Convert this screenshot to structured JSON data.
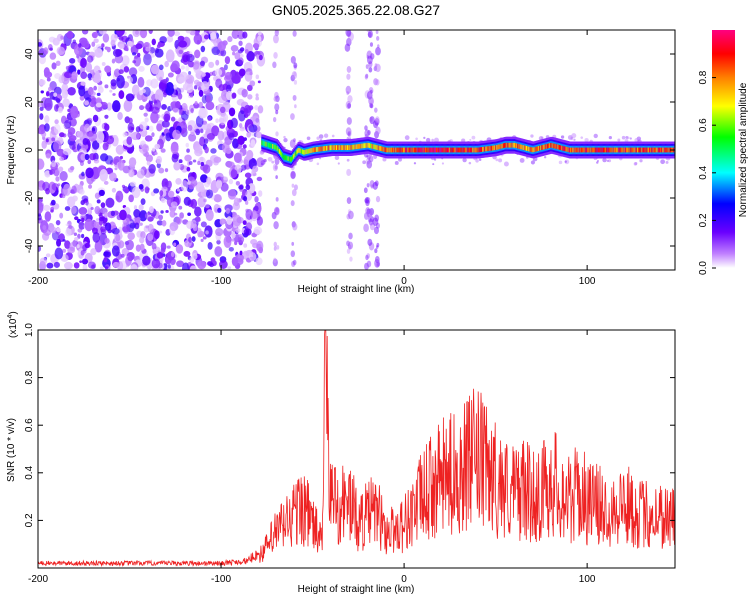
{
  "title": "GN05.2025.365.22.08.G27",
  "chart_data": [
    {
      "type": "heatmap",
      "xlabel": "Height of straight line (km)",
      "ylabel": "Frequency (Hz)",
      "xlim": [
        -200,
        148
      ],
      "ylim": [
        -50,
        50
      ],
      "xticks": [
        -200,
        -100,
        0,
        100
      ],
      "yticks": [
        -40,
        -20,
        0,
        20,
        40
      ],
      "colorbar": {
        "label": "Normalized spectral amplitude",
        "range": [
          0,
          1
        ],
        "ticks": [
          0.0,
          0.2,
          0.4,
          0.6,
          0.8
        ],
        "colors": [
          "#ffffff",
          "#c080ff",
          "#6a00ff",
          "#0000ff",
          "#00ffff",
          "#00ff00",
          "#ffff00",
          "#ff8000",
          "#ff0000",
          "#ff00a0"
        ]
      },
      "noise_region_x": [
        -200,
        -78
      ],
      "ridge": {
        "x": [
          -78,
          -74,
          -70,
          -66,
          -62,
          -58,
          -55,
          -50,
          -40,
          -30,
          -20,
          -10,
          0,
          10,
          20,
          30,
          40,
          50,
          55,
          60,
          65,
          70,
          75,
          80,
          90,
          100,
          110,
          120,
          130,
          140,
          148
        ],
        "freq": [
          3,
          2,
          1,
          -3,
          -4,
          0,
          -1,
          0,
          1,
          1,
          2,
          0,
          0,
          0,
          0,
          0,
          0,
          1,
          2,
          2,
          1,
          0,
          1,
          2,
          0,
          0,
          0,
          0,
          0,
          0,
          0
        ],
        "amp": [
          0.5,
          0.6,
          0.6,
          0.55,
          0.6,
          0.65,
          0.7,
          0.75,
          0.75,
          0.75,
          0.7,
          0.8,
          0.85,
          0.9,
          0.9,
          0.85,
          0.85,
          0.8,
          0.85,
          0.8,
          0.75,
          0.8,
          0.8,
          0.85,
          0.85,
          0.85,
          0.9,
          0.85,
          0.85,
          0.85,
          0.85
        ]
      }
    },
    {
      "type": "line",
      "xlabel": "Height of straight line (km)",
      "ylabel": "SNR (10 * v/v)",
      "y_multiplier": "(x10^4)",
      "xlim": [
        -200,
        148
      ],
      "ylim": [
        0,
        1.0
      ],
      "xticks": [
        -200,
        -100,
        0,
        100
      ],
      "yticks": [
        0.2,
        0.4,
        0.6,
        0.8,
        1.0
      ],
      "color": "#ee2222",
      "series": [
        {
          "x": [
            -200,
            -150,
            -100,
            -85,
            -78,
            -75,
            -70,
            -65,
            -60,
            -55,
            -50,
            -45,
            -43,
            -40,
            -35,
            -30,
            -25,
            -20,
            -15,
            -10,
            -5,
            0,
            5,
            10,
            15,
            20,
            25,
            30,
            35,
            40,
            45,
            50,
            55,
            60,
            65,
            70,
            75,
            80,
            85,
            90,
            95,
            100,
            110,
            120,
            130,
            140,
            148
          ],
          "y": [
            0.02,
            0.02,
            0.02,
            0.03,
            0.08,
            0.12,
            0.2,
            0.25,
            0.3,
            0.35,
            0.25,
            0.15,
            1.0,
            0.4,
            0.35,
            0.38,
            0.25,
            0.3,
            0.32,
            0.2,
            0.22,
            0.25,
            0.32,
            0.4,
            0.45,
            0.5,
            0.52,
            0.55,
            0.58,
            0.62,
            0.55,
            0.5,
            0.45,
            0.42,
            0.45,
            0.4,
            0.42,
            0.5,
            0.44,
            0.38,
            0.42,
            0.38,
            0.33,
            0.36,
            0.3,
            0.3,
            0.28
          ]
        }
      ]
    }
  ]
}
